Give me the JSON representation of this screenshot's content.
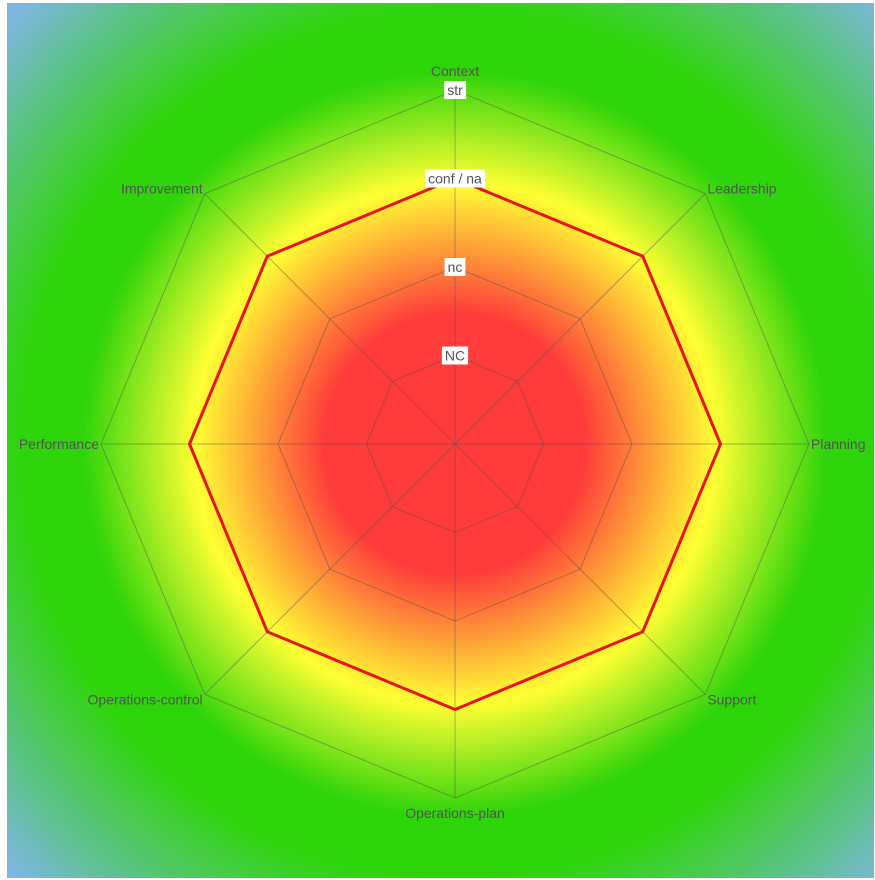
{
  "chart_data": {
    "type": "radar",
    "title": "",
    "axes": [
      "Context",
      "Leadership",
      "Planning",
      "Support",
      "Operations-plan",
      "Operations-control",
      "Performance",
      "Improvement"
    ],
    "levels": [
      "NC",
      "nc",
      "conf / na",
      "str"
    ],
    "level_range": [
      0,
      4
    ],
    "series": [
      {
        "values": [
          3.0,
          3.0,
          3.0,
          3.0,
          3.0,
          3.0,
          3.0,
          3.0
        ],
        "color": "#e8141b"
      }
    ],
    "grid": true,
    "background_colors": {
      "center": "#ff3b3b",
      "mid": "#ffff33",
      "outer": "#2ed40a",
      "corner": "#7fb5e6"
    }
  }
}
